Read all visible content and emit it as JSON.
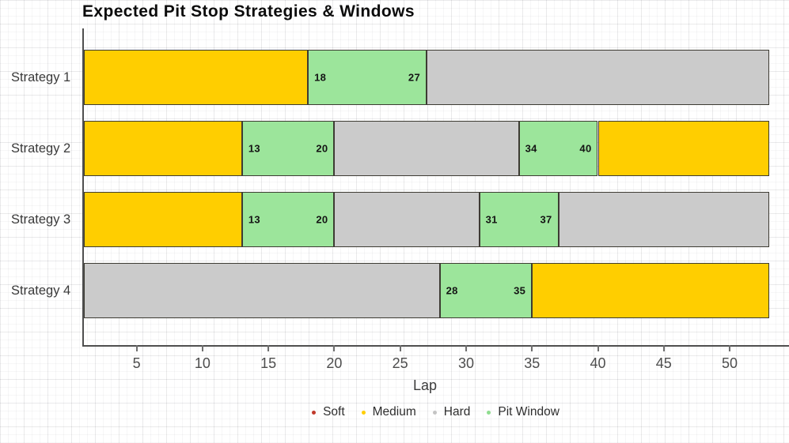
{
  "title": "Expected Pit Stop Strategies & Windows",
  "colors": {
    "Soft": "#c0392b",
    "Medium": "#ffce00",
    "Hard": "#cbcbcb",
    "Pit Window": "#9ce59b",
    "segment_border": "#3d3b33",
    "axis": "#4f4f4f"
  },
  "chart_data": {
    "type": "bar",
    "orientation": "horizontal-stacked-timeline",
    "title": "Expected Pit Stop Strategies & Windows",
    "xlabel": "Lap",
    "ylabel": "",
    "xlim": [
      1,
      53
    ],
    "x_ticks": [
      5,
      10,
      15,
      20,
      25,
      30,
      35,
      40,
      45,
      50
    ],
    "grid": "fine graph-paper background",
    "legend_position": "bottom-center",
    "legend": [
      {
        "label": "Soft",
        "color": "#c0392b"
      },
      {
        "label": "Medium",
        "color": "#ffce00"
      },
      {
        "label": "Hard",
        "color": "#c4c4c4"
      },
      {
        "label": "Pit Window",
        "color": "#8fdd8f"
      }
    ],
    "series": [
      {
        "name": "Strategy 1",
        "segments": [
          {
            "compound": "Medium",
            "start": 1,
            "end": 18
          },
          {
            "compound": "Pit Window",
            "start": 18,
            "end": 27,
            "start_label": "18",
            "end_label": "27"
          },
          {
            "compound": "Hard",
            "start": 27,
            "end": 53
          }
        ]
      },
      {
        "name": "Strategy 2",
        "segments": [
          {
            "compound": "Medium",
            "start": 1,
            "end": 13
          },
          {
            "compound": "Pit Window",
            "start": 13,
            "end": 20,
            "start_label": "13",
            "end_label": "20"
          },
          {
            "compound": "Hard",
            "start": 20,
            "end": 34
          },
          {
            "compound": "Pit Window",
            "start": 34,
            "end": 40,
            "start_label": "34",
            "end_label": "40"
          },
          {
            "compound": "Medium",
            "start": 40,
            "end": 53
          }
        ]
      },
      {
        "name": "Strategy 3",
        "segments": [
          {
            "compound": "Medium",
            "start": 1,
            "end": 13
          },
          {
            "compound": "Pit Window",
            "start": 13,
            "end": 20,
            "start_label": "13",
            "end_label": "20"
          },
          {
            "compound": "Hard",
            "start": 20,
            "end": 31
          },
          {
            "compound": "Pit Window",
            "start": 31,
            "end": 37,
            "start_label": "31",
            "end_label": "37"
          },
          {
            "compound": "Hard",
            "start": 37,
            "end": 53
          }
        ]
      },
      {
        "name": "Strategy 4",
        "segments": [
          {
            "compound": "Hard",
            "start": 1,
            "end": 28
          },
          {
            "compound": "Pit Window",
            "start": 28,
            "end": 35,
            "start_label": "28",
            "end_label": "35"
          },
          {
            "compound": "Medium",
            "start": 35,
            "end": 53
          }
        ]
      }
    ]
  }
}
